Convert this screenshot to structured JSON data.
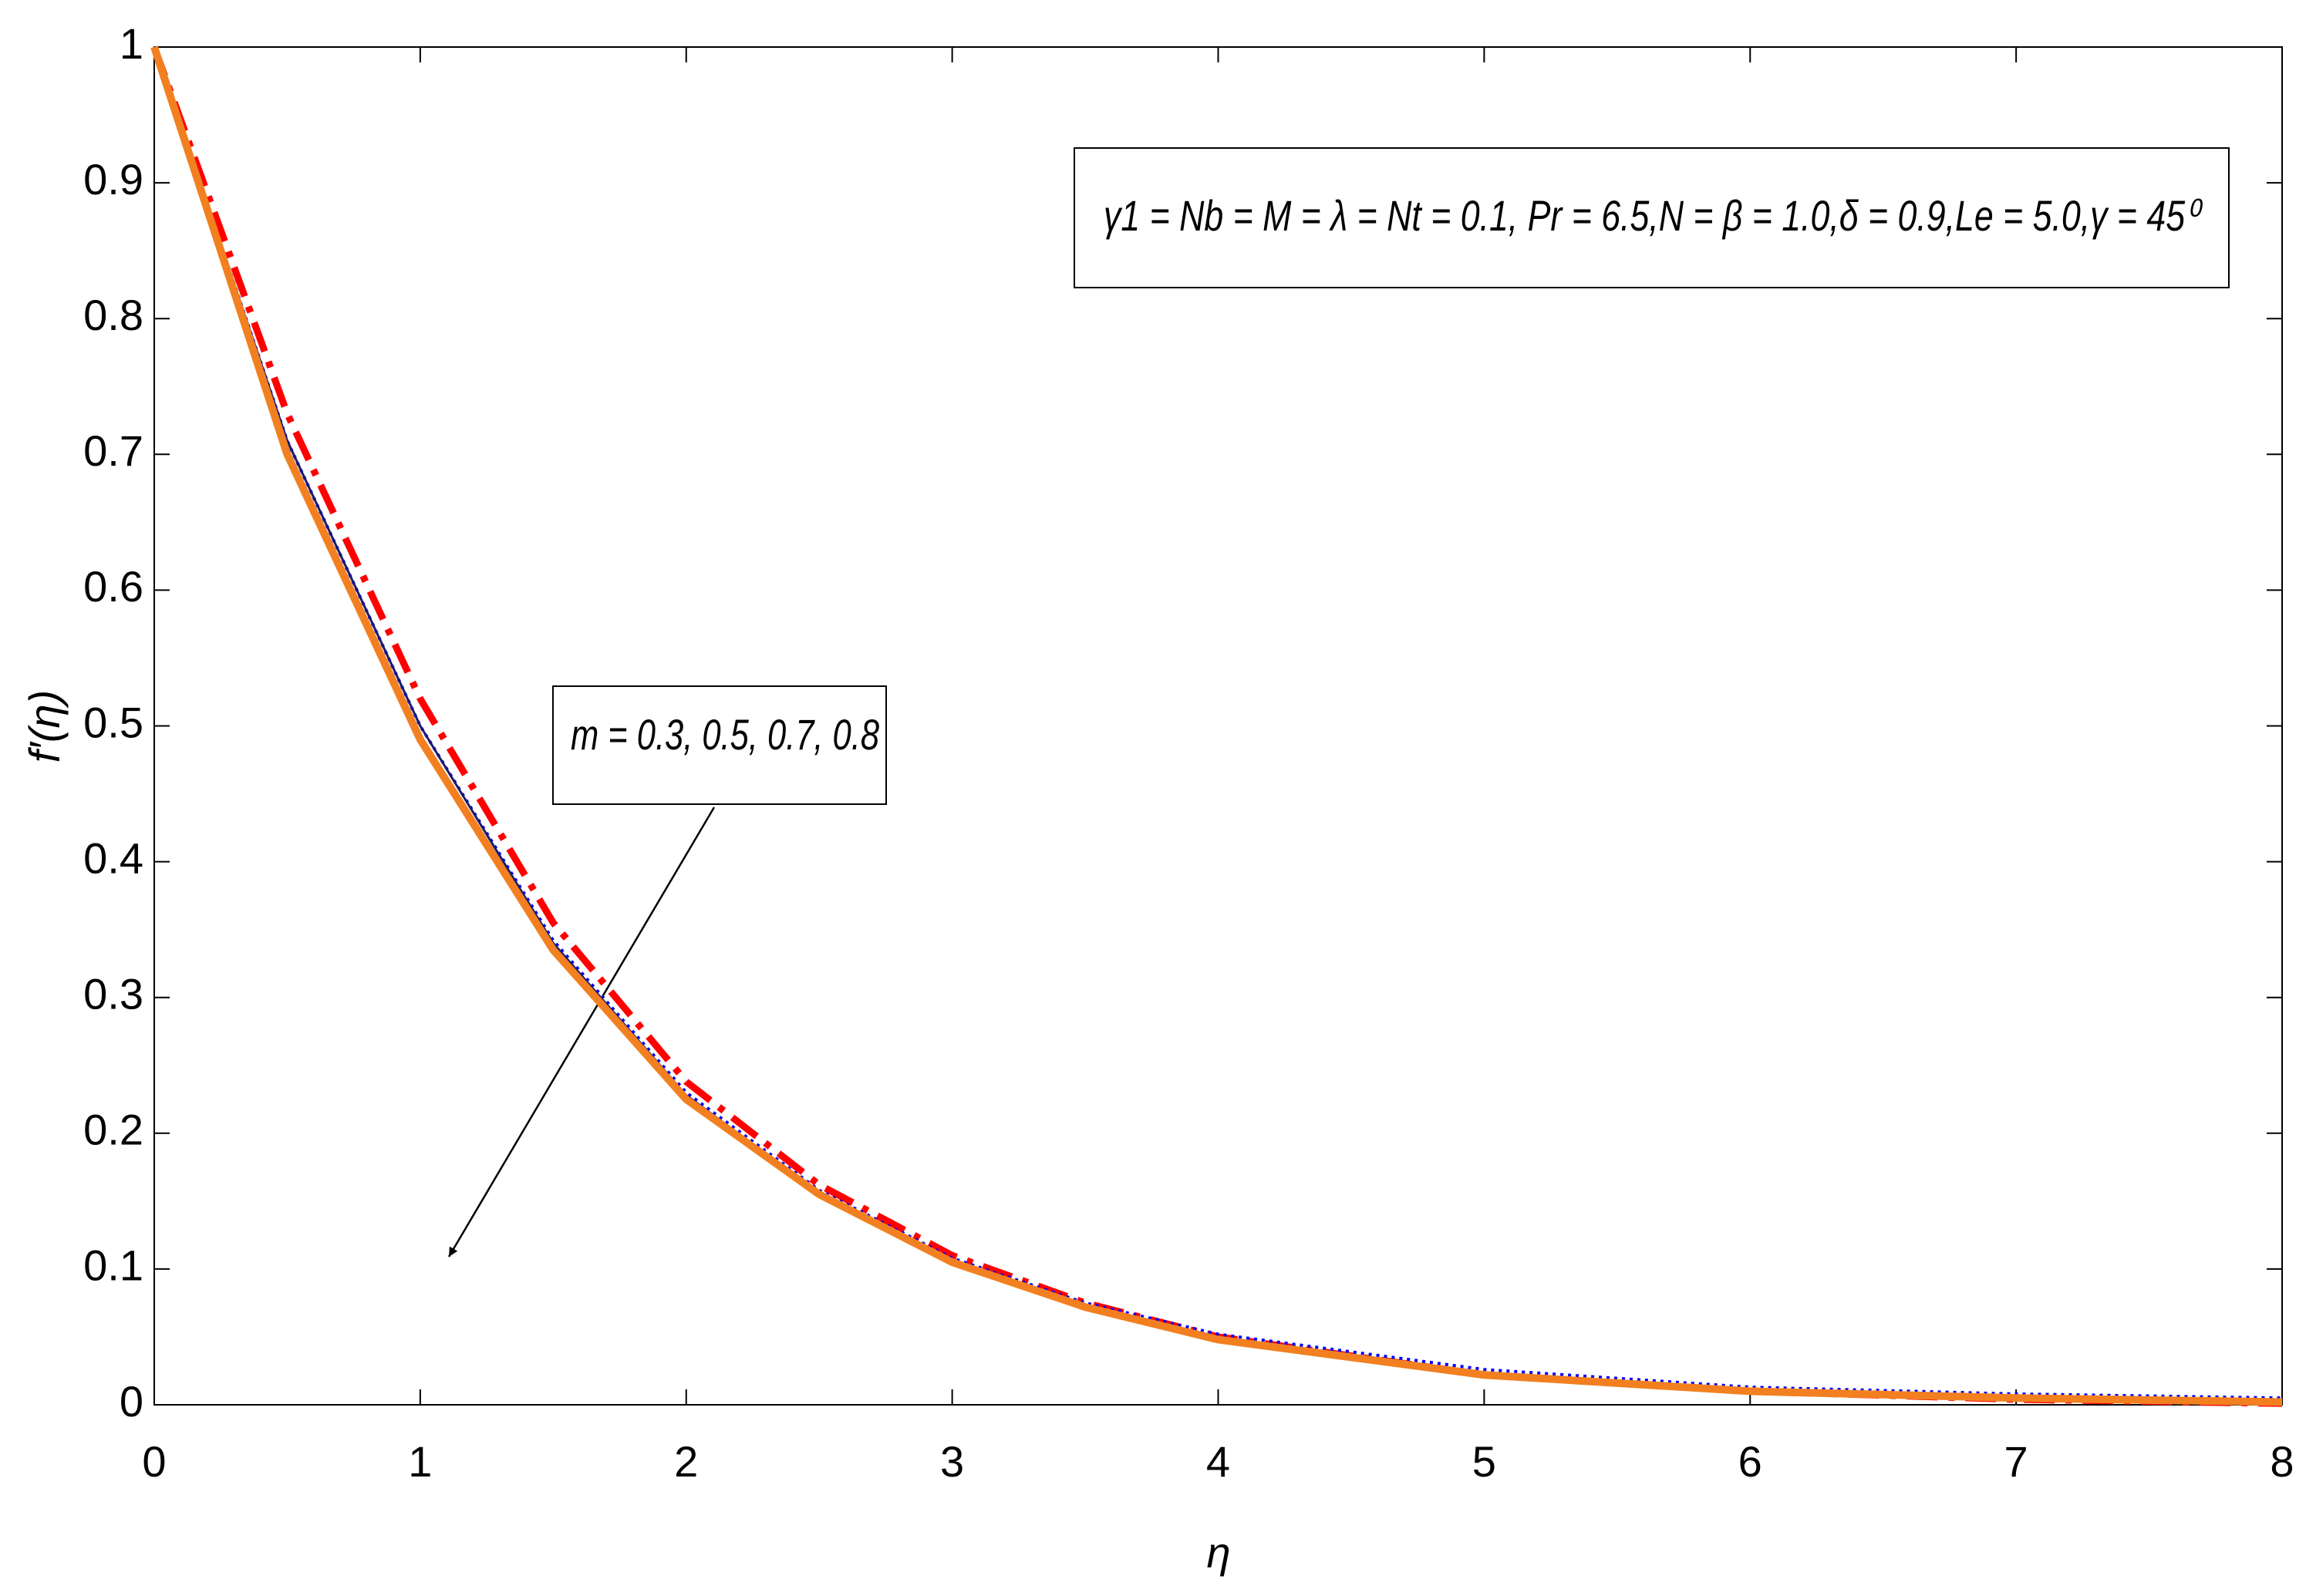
{
  "chart_data": {
    "type": "line",
    "x_label": "η",
    "y_label": "f′(η)",
    "annotations": [
      "γ1 = Nb = M = λ = Nt = 0.1, Pr = 6.5,N = β = 1.0,δ = 0.9,Le = 5.0,γ = 45⁰",
      "m = 0.3, 0.5, 0.7, 0.8"
    ],
    "x": [
      0,
      0.5,
      1,
      1.5,
      2,
      2.5,
      3,
      3.5,
      4,
      5,
      6,
      7,
      8
    ],
    "series": [
      {
        "color": "#ff0000",
        "linestyle": "dashdot",
        "linewidth": 9,
        "values": [
          1,
          0.73,
          0.52,
          0.355,
          0.238,
          0.162,
          0.11,
          0.075,
          0.05,
          0.022,
          0.01,
          0.004,
          0.001
        ]
      },
      {
        "color": "#0000ff",
        "linestyle": "dotted",
        "linewidth": 4,
        "values": [
          1,
          0.71,
          0.5,
          0.342,
          0.23,
          0.158,
          0.108,
          0.075,
          0.052,
          0.026,
          0.013,
          0.008,
          0.005
        ]
      },
      {
        "color": "#1a1a6e",
        "linestyle": "solid",
        "linewidth": 3,
        "values": [
          1,
          0.71,
          0.5,
          0.34,
          0.228,
          0.156,
          0.106,
          0.073,
          0.049,
          0.023,
          0.011,
          0.006,
          0.003
        ]
      },
      {
        "color": "#f28020",
        "linestyle": "solid",
        "linewidth": 10,
        "values": [
          1,
          0.7,
          0.49,
          0.335,
          0.225,
          0.155,
          0.105,
          0.072,
          0.048,
          0.022,
          0.01,
          0.005,
          0.002
        ]
      }
    ],
    "xlim": [
      0,
      8
    ],
    "ylim": [
      0,
      1
    ],
    "xticks": [
      0,
      1,
      2,
      3,
      4,
      5,
      6,
      7,
      8
    ],
    "yticks": [
      0,
      0.1,
      0.2,
      0.3,
      0.4,
      0.5,
      0.6,
      0.7,
      0.8,
      0.9,
      1
    ],
    "grid": false
  }
}
